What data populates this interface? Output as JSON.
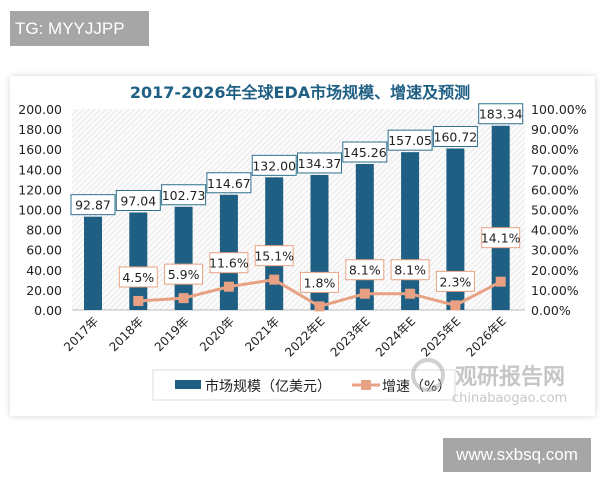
{
  "watermarks": {
    "top_left": "TG: MYYJJPP",
    "bottom_right": "www.sxbsq.com",
    "logo_cn": "观研报告网",
    "logo_en": "chinabaogao.com"
  },
  "chart_data": {
    "type": "bar+line",
    "title": "2017-2026年全球EDA市场规模、增速及预测",
    "categories": [
      "2017年",
      "2018年",
      "2019年",
      "2020年",
      "2021年",
      "2022年E",
      "2023年E",
      "2024年E",
      "2025年E",
      "2026年E"
    ],
    "series": [
      {
        "name": "市场规模（亿美元）",
        "type": "bar",
        "axis": "left",
        "color": "#1f5f84",
        "values": [
          92.87,
          97.04,
          102.73,
          114.67,
          132.0,
          134.37,
          145.26,
          157.05,
          160.72,
          183.34
        ],
        "labels": [
          "92.87",
          "97.04",
          "102.73",
          "114.67",
          "132.00",
          "134.37",
          "145.26",
          "157.05",
          "160.72",
          "183.34"
        ]
      },
      {
        "name": "增速（%）",
        "type": "line",
        "axis": "right",
        "color": "#e8a283",
        "values": [
          null,
          4.5,
          5.9,
          11.6,
          15.1,
          1.8,
          8.1,
          8.1,
          2.3,
          14.1
        ],
        "labels": [
          "",
          "4.5%",
          "5.9%",
          "11.6%",
          "15.1%",
          "1.8%",
          "8.1%",
          "8.1%",
          "2.3%",
          "14.1%"
        ]
      }
    ],
    "y_left": {
      "range": [
        0,
        200
      ],
      "ticks": [
        "0.00",
        "20.00",
        "40.00",
        "60.00",
        "80.00",
        "100.00",
        "120.00",
        "140.00",
        "160.00",
        "180.00",
        "200.00"
      ]
    },
    "y_right": {
      "range": [
        0,
        100
      ],
      "ticks": [
        "0.00%",
        "10.00%",
        "20.00%",
        "30.00%",
        "40.00%",
        "50.00%",
        "60.00%",
        "70.00%",
        "80.00%",
        "90.00%",
        "100.00%"
      ]
    },
    "legend_placement": "bottom",
    "grid": false
  }
}
